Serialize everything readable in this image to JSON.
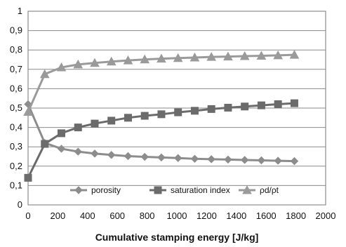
{
  "chart_data": {
    "type": "line",
    "title": "",
    "xlabel": "Cumulative stamping energy [J/kg]",
    "ylabel": "",
    "xlim": [
      0,
      2000
    ],
    "ylim": [
      0,
      1
    ],
    "x_ticks": [
      "0",
      "200",
      "400",
      "600",
      "800",
      "1000",
      "1200",
      "1400",
      "1600",
      "1800",
      "2000"
    ],
    "y_ticks": [
      "0",
      "0,1",
      "0,2",
      "0,3",
      "0,4",
      "0,5",
      "0,6",
      "0,7",
      "0,8",
      "0,9",
      "1"
    ],
    "grid": "horizontal",
    "legend_position": "bottom-inside",
    "x": [
      0,
      112,
      224,
      336,
      448,
      560,
      672,
      784,
      896,
      1008,
      1120,
      1232,
      1344,
      1456,
      1568,
      1680,
      1790
    ],
    "series": [
      {
        "name": "porosity",
        "marker": "diamond",
        "color": "#8c8c8c",
        "values": [
          0.52,
          0.32,
          0.29,
          0.275,
          0.265,
          0.258,
          0.252,
          0.248,
          0.245,
          0.242,
          0.238,
          0.236,
          0.234,
          0.232,
          0.23,
          0.228,
          0.226
        ]
      },
      {
        "name": "saturation index",
        "marker": "square",
        "color": "#6b6b6b",
        "values": [
          0.14,
          0.315,
          0.37,
          0.4,
          0.42,
          0.435,
          0.45,
          0.46,
          0.468,
          0.478,
          0.486,
          0.495,
          0.502,
          0.508,
          0.514,
          0.52,
          0.525
        ]
      },
      {
        "name": "ρd/ρt",
        "marker": "triangle",
        "color": "#9a9a9a",
        "values": [
          0.48,
          0.675,
          0.71,
          0.725,
          0.733,
          0.74,
          0.746,
          0.751,
          0.755,
          0.758,
          0.761,
          0.764,
          0.766,
          0.768,
          0.77,
          0.772,
          0.775
        ]
      }
    ]
  }
}
